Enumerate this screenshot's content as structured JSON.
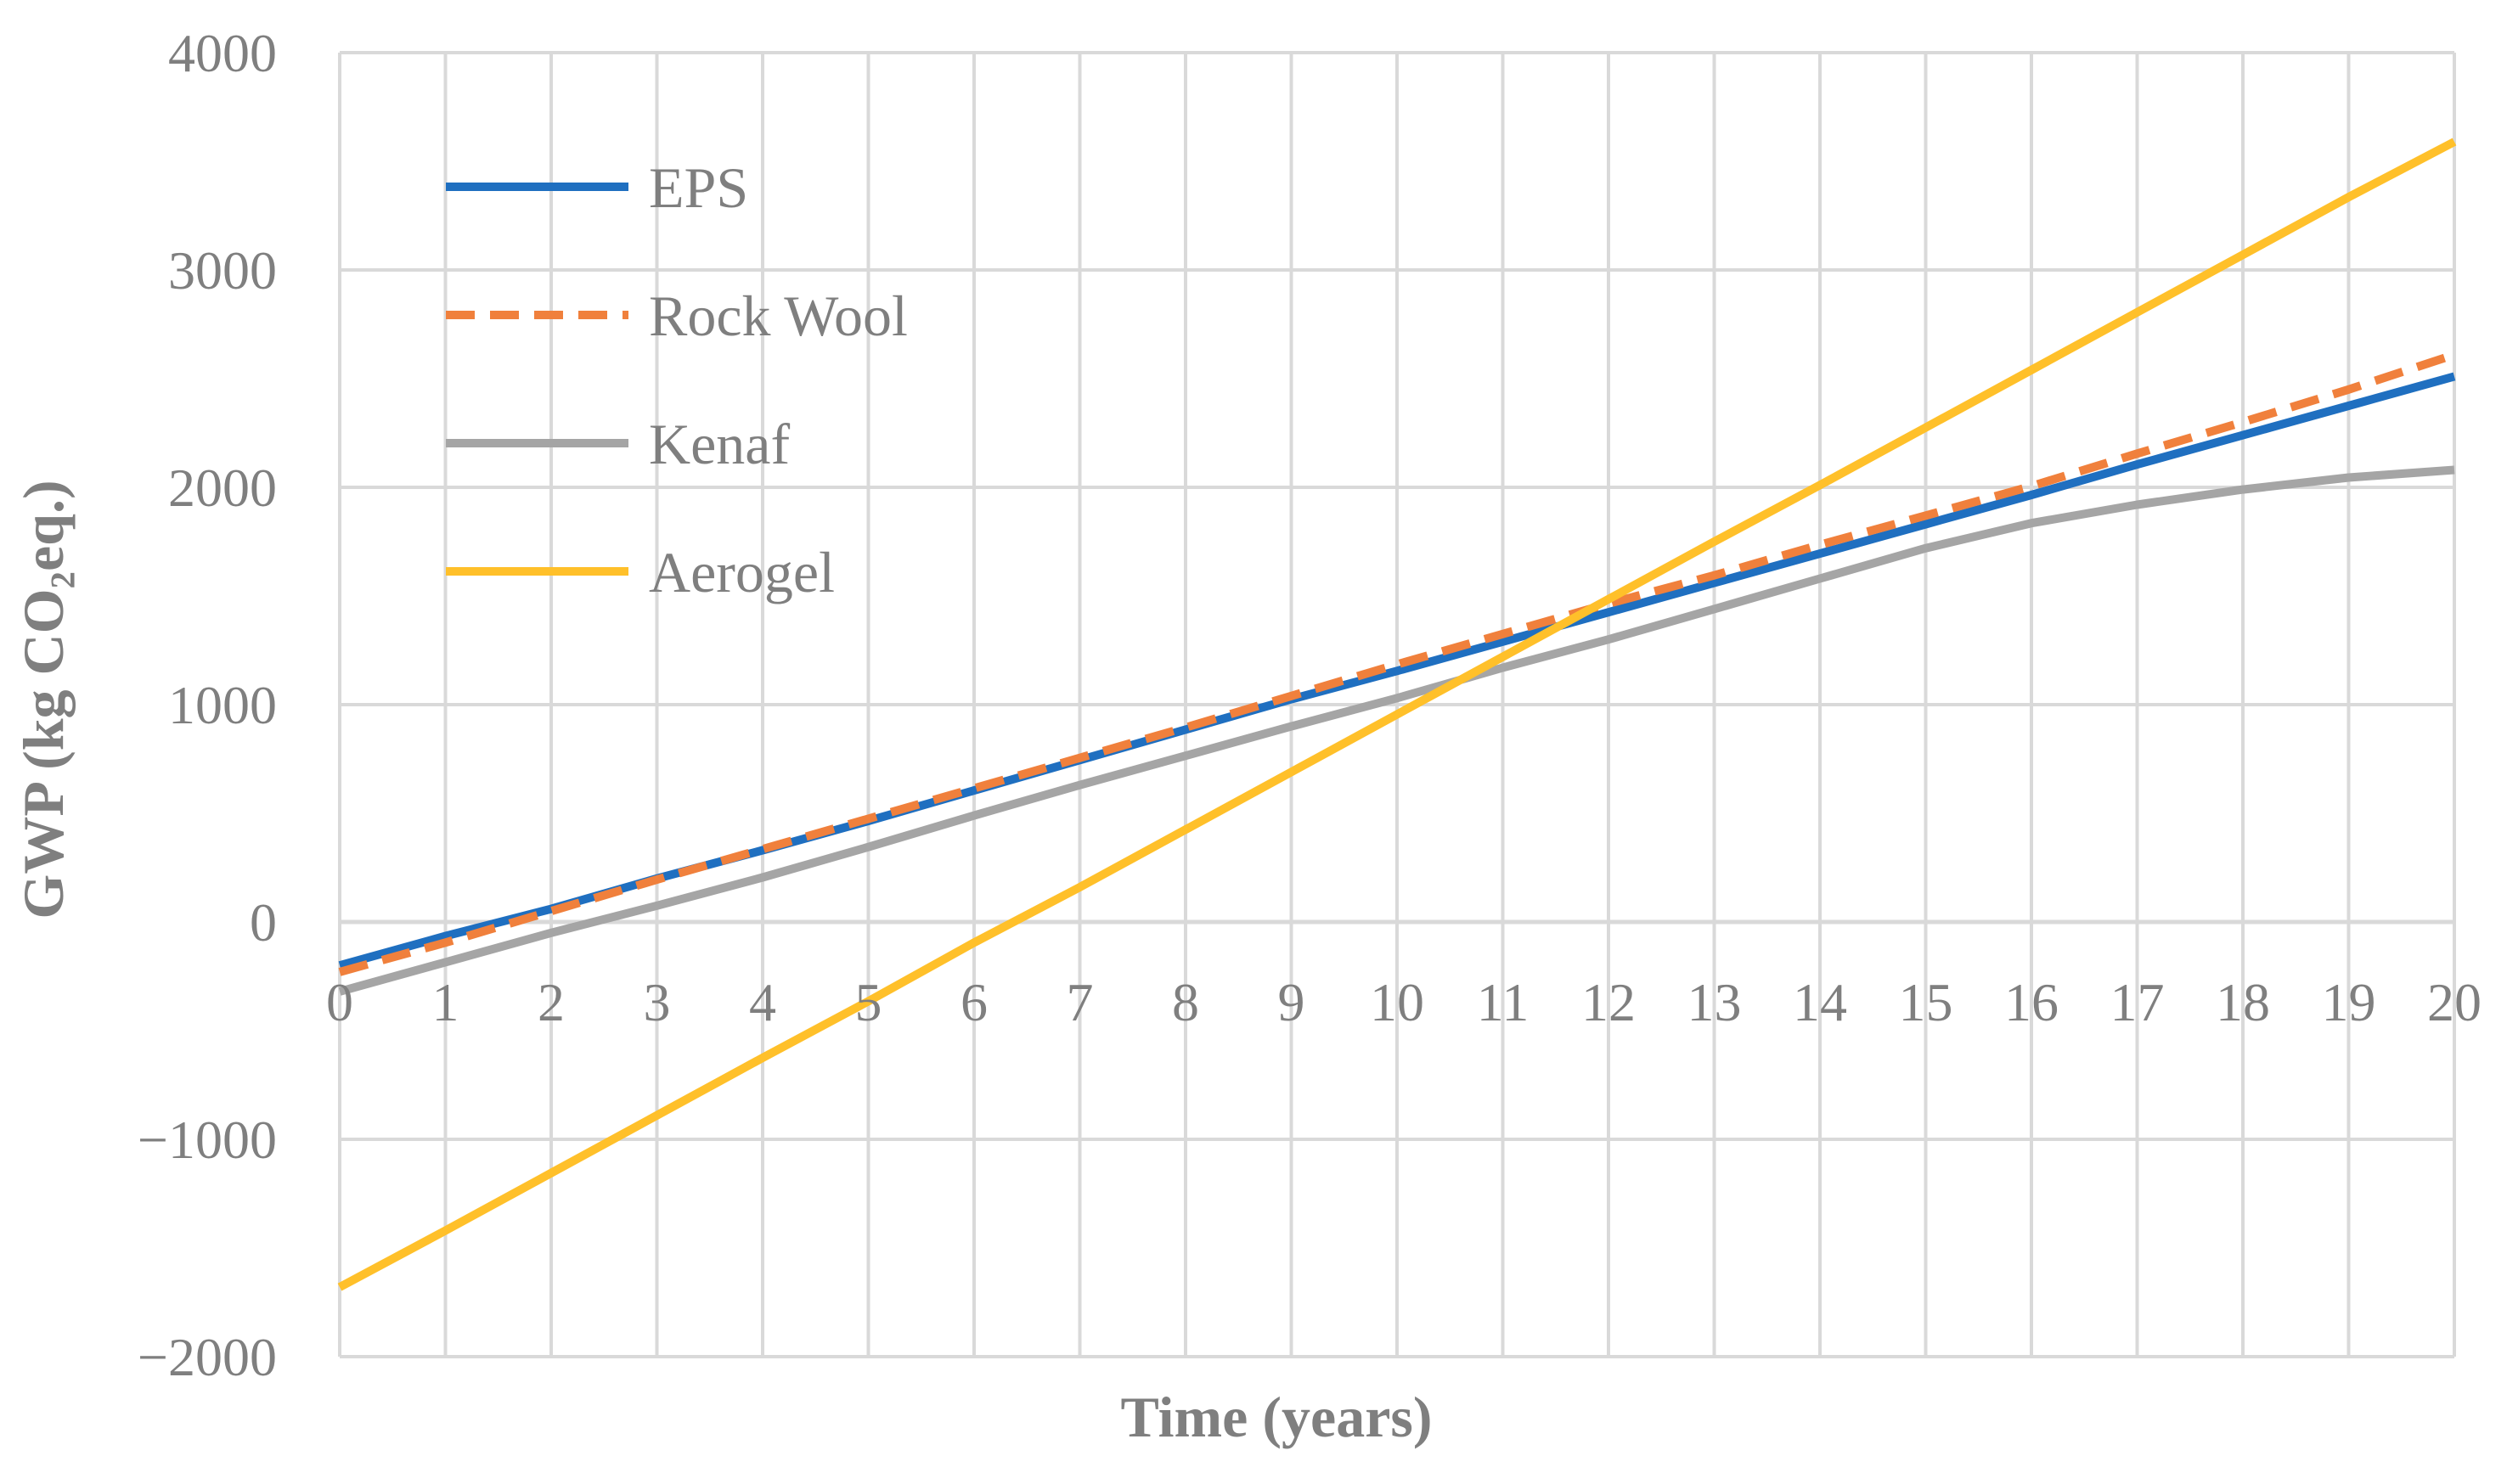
{
  "chart_data": {
    "type": "line",
    "xlabel": "Time (years)",
    "ylabel": "GWP (kg CO₂eq.)",
    "xlim": [
      0,
      20
    ],
    "ylim": [
      -2000,
      4000
    ],
    "x_ticks": [
      "0",
      "1",
      "2",
      "3",
      "4",
      "5",
      "6",
      "7",
      "8",
      "9",
      "10",
      "11",
      "12",
      "13",
      "14",
      "15",
      "16",
      "17",
      "18",
      "19",
      "20"
    ],
    "y_ticks": [
      {
        "value": 4000,
        "label": "4000"
      },
      {
        "value": 3000,
        "label": "3000"
      },
      {
        "value": 2000,
        "label": "2000"
      },
      {
        "value": 1000,
        "label": "1000"
      },
      {
        "value": 0,
        "label": "0"
      },
      {
        "value": -1000,
        "label": "−1000"
      },
      {
        "value": -2000,
        "label": "−2000"
      }
    ],
    "grid": true,
    "legend_position": "top-left",
    "x": [
      0,
      1,
      2,
      3,
      4,
      5,
      6,
      7,
      8,
      9,
      10,
      11,
      12,
      13,
      14,
      15,
      16,
      17,
      18,
      19,
      20
    ],
    "series": [
      {
        "name": "EPS",
        "color": "#1f6fc0",
        "dash": "solid",
        "values": [
          -200,
          -65,
          60,
          200,
          330,
          465,
          605,
          745,
          885,
          1025,
          1155,
          1290,
          1425,
          1560,
          1695,
          1830,
          1965,
          2105,
          2240,
          2375,
          2510
        ]
      },
      {
        "name": "Rock Wool",
        "color": "#f0803c",
        "dash": "dashed",
        "values": [
          -230,
          -95,
          50,
          195,
          335,
          475,
          615,
          755,
          895,
          1040,
          1185,
          1325,
          1465,
          1595,
          1735,
          1870,
          2005,
          2155,
          2300,
          2450,
          2610
        ]
      },
      {
        "name": "Kenaf",
        "color": "#a5a5a5",
        "dash": "solid",
        "values": [
          -320,
          -185,
          -50,
          75,
          205,
          345,
          490,
          630,
          765,
          900,
          1030,
          1170,
          1300,
          1440,
          1580,
          1720,
          1835,
          1920,
          1990,
          2045,
          2080
        ]
      },
      {
        "name": "Aerogel",
        "color": "#ffc02a",
        "dash": "solid",
        "values": [
          -1680,
          -1420,
          -1155,
          -890,
          -625,
          -365,
          -95,
          160,
          425,
          690,
          955,
          1220,
          1485,
          1750,
          2010,
          2275,
          2540,
          2805,
          3070,
          3335,
          3590
        ]
      }
    ]
  }
}
